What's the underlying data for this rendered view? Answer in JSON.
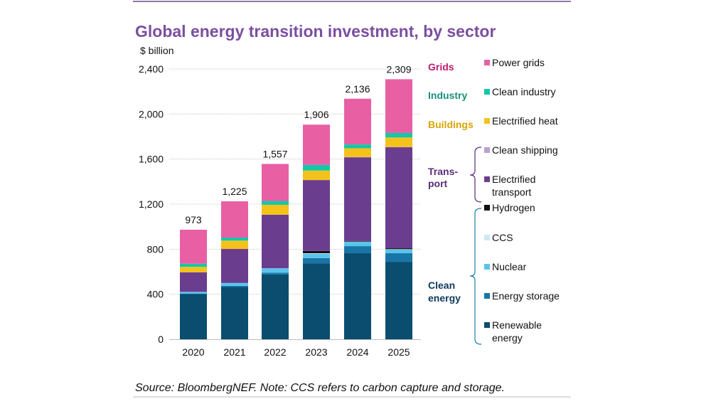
{
  "chart_data": {
    "type": "bar",
    "stacked": true,
    "title": "Global energy transition investment, by sector",
    "ylabel": "$ billion",
    "xlabel": "",
    "ylim": [
      0,
      2400
    ],
    "yticks": [
      "0",
      "400",
      "800",
      "1,200",
      "1,600",
      "2,000",
      "2,400"
    ],
    "ytick_values": [
      0,
      400,
      800,
      1200,
      1600,
      2000,
      2400
    ],
    "grid": true,
    "legend_position": "right",
    "categories": [
      "2020",
      "2021",
      "2022",
      "2023",
      "2024",
      "2025"
    ],
    "totals": [
      "973",
      "1,225",
      "1,557",
      "1,906",
      "2,136",
      "2,309"
    ],
    "series": [
      {
        "name": "Renewable energy",
        "color": "#0a4d6e",
        "values": [
          401,
          464,
          576,
          675,
          764,
          688
        ]
      },
      {
        "name": "Energy storage",
        "color": "#1776a6",
        "values": [
          5,
          10,
          15,
          46,
          63,
          76
        ]
      },
      {
        "name": "Nuclear",
        "color": "#5bc4ee",
        "values": [
          15,
          26,
          37,
          38,
          38,
          33
        ]
      },
      {
        "name": "CCS",
        "color": "#cde9f4",
        "values": [
          0,
          0,
          2,
          5,
          2,
          3
        ]
      },
      {
        "name": "Hydrogen",
        "color": "#111111",
        "values": [
          0,
          0,
          0,
          20,
          5,
          8
        ]
      },
      {
        "name": "Electrified transport",
        "color": "#6a3d8e",
        "values": [
          174,
          302,
          476,
          630,
          744,
          897
        ]
      },
      {
        "name": "Clean shipping",
        "color": "#b9a0d3",
        "values": [
          0,
          0,
          0,
          0,
          2,
          3
        ]
      },
      {
        "name": "Electrified heat",
        "color": "#f5c21b",
        "values": [
          48,
          74,
          88,
          84,
          78,
          84
        ]
      },
      {
        "name": "Clean industry",
        "color": "#14c7a8",
        "values": [
          28,
          27,
          34,
          51,
          34,
          40
        ]
      },
      {
        "name": "Power grids",
        "color": "#e95fa4",
        "values": [
          302,
          322,
          329,
          357,
          406,
          477
        ]
      }
    ],
    "legend_groups": [
      {
        "label": "Grids",
        "color": "#c0186e",
        "items": [
          "Power grids"
        ]
      },
      {
        "label": "Industry",
        "color": "#1a8f7a",
        "items": [
          "Clean industry"
        ]
      },
      {
        "label": "Buildings",
        "color": "#d9a400",
        "items": [
          "Electrified heat"
        ]
      },
      {
        "label": "Trans-port",
        "color": "#5a2d7a",
        "items": [
          "Clean shipping",
          "Electrified transport"
        ]
      },
      {
        "label": "Clean energy",
        "color": "#0d3a5a",
        "items": [
          "Hydrogen",
          "CCS",
          "Nuclear",
          "Energy storage",
          "Renewable energy"
        ]
      }
    ]
  },
  "labels": {
    "group_transport_1": "Trans-",
    "group_transport_2": "port",
    "group_clean_1": "Clean",
    "group_clean_2": "energy",
    "electrified_1": "Electrified",
    "electrified_2": "transport",
    "renewable_1": "Renewable",
    "renewable_2": "energy"
  },
  "source": "Source: BloombergNEF. Note: CCS refers to carbon capture and storage.",
  "colors": {
    "title": "#7b4fa0",
    "rule_top": "#6b4d8a",
    "rule_bottom": "#bbbbbb"
  }
}
